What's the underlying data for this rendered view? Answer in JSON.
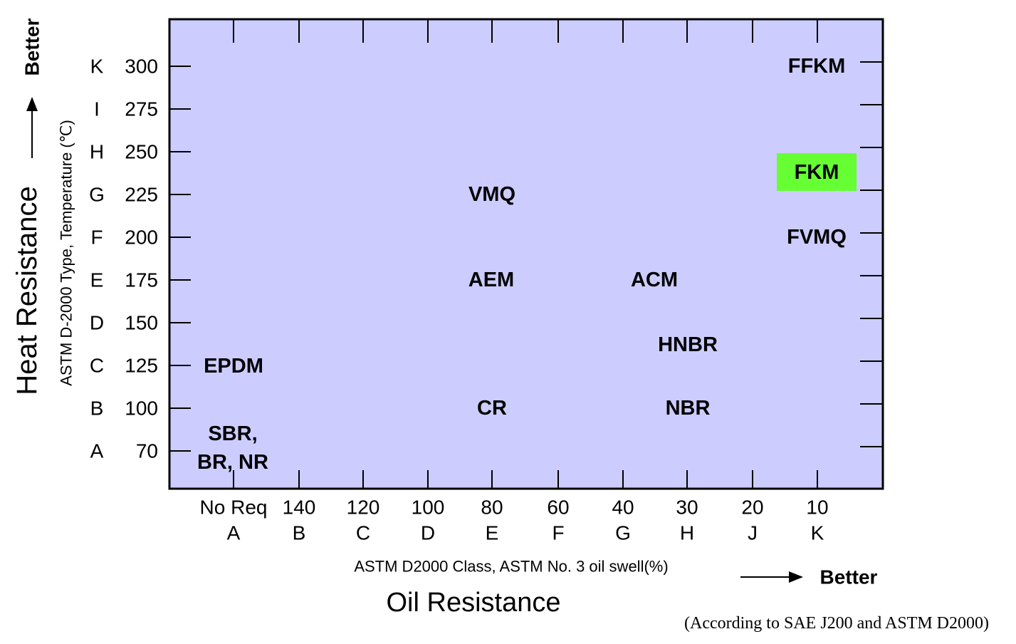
{
  "y_axis": {
    "title": "Heat Resistance",
    "subtitle": "ASTM D-2000 Type, Temperature (℃)",
    "better": "Better",
    "classes": [
      "A",
      "B",
      "C",
      "D",
      "E",
      "F",
      "G",
      "H",
      "I",
      "K"
    ],
    "temperatures": [
      "70",
      "100",
      "125",
      "150",
      "175",
      "200",
      "225",
      "250",
      "275",
      "300"
    ]
  },
  "x_axis": {
    "title": "Oil Resistance",
    "subtitle": "ASTM D2000 Class, ASTM No. 3 oil  swell(%)",
    "better": "Better",
    "swell": [
      "No Req",
      "140",
      "120",
      "100",
      "80",
      "60",
      "40",
      "30",
      "20",
      "10"
    ],
    "classes": [
      "A",
      "B",
      "C",
      "D",
      "E",
      "F",
      "G",
      "H",
      "J",
      "K"
    ]
  },
  "materials": [
    {
      "lines": [
        "FFKM"
      ]
    },
    {
      "lines": [
        "FKM"
      ],
      "highlight": "#66ff33"
    },
    {
      "lines": [
        "FVMQ"
      ]
    },
    {
      "lines": [
        "VMQ"
      ]
    },
    {
      "lines": [
        "AEM"
      ]
    },
    {
      "lines": [
        "ACM"
      ]
    },
    {
      "lines": [
        "HNBR"
      ]
    },
    {
      "lines": [
        "EPDM"
      ]
    },
    {
      "lines": [
        "CR"
      ]
    },
    {
      "lines": [
        "NBR"
      ]
    },
    {
      "lines": [
        "SBR,",
        "BR, NR"
      ]
    }
  ],
  "note": "(According to SAE J200 and ASTM D2000)"
}
